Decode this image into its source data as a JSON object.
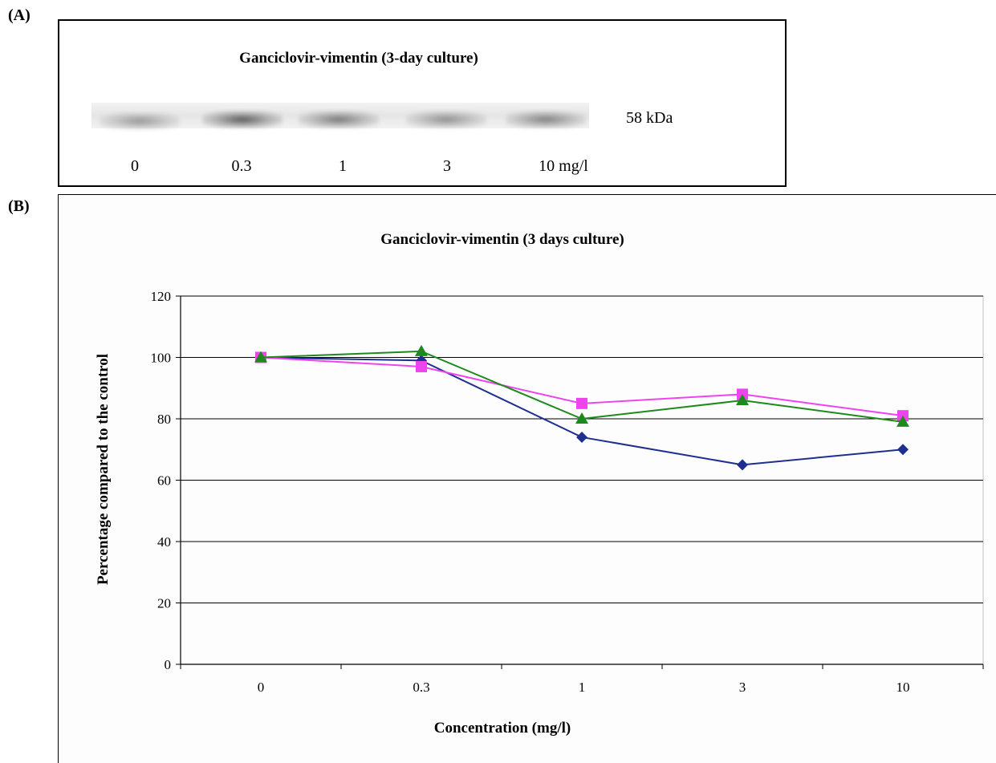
{
  "panel_a": {
    "label": "(A)",
    "title": "Ganciclovir-vimentin (3-day culture)",
    "band_size": "58 kDa",
    "lanes": [
      "0",
      "0.3",
      "1",
      "3",
      "10 mg/l"
    ]
  },
  "panel_b": {
    "label": "(B)"
  },
  "chart_data": {
    "type": "line",
    "title": "Ganciclovir-vimentin (3 days culture)",
    "xlabel": "Concentration (mg/l)",
    "ylabel": "Percentage compared to the control",
    "categories": [
      "0",
      "0.3",
      "1",
      "3",
      "10"
    ],
    "ylim": [
      0,
      120
    ],
    "yticks": [
      0,
      20,
      40,
      60,
      80,
      100,
      120
    ],
    "grid": true,
    "series": [
      {
        "marker": "diamond",
        "color": "#1f2f8f",
        "values": [
          100,
          99,
          74,
          65,
          70
        ]
      },
      {
        "marker": "square",
        "color": "#ee44ee",
        "values": [
          100,
          97,
          85,
          88,
          81
        ]
      },
      {
        "marker": "triangle",
        "color": "#1e8a1e",
        "values": [
          100,
          102,
          80,
          86,
          79
        ]
      }
    ]
  }
}
